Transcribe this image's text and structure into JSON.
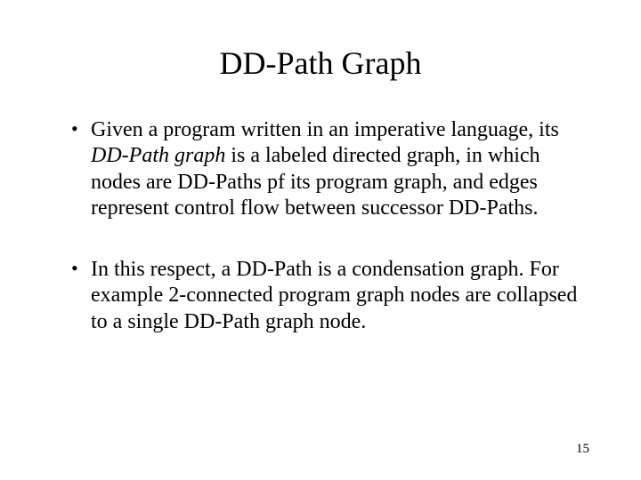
{
  "title": "DD-Path Graph",
  "bullets": [
    {
      "pre": "Given a program written in an imperative language, its ",
      "em": "DD-Path graph",
      "post": " is a labeled directed graph, in which nodes are DD-Paths pf its program graph, and edges represent control flow between successor DD-Paths."
    },
    {
      "pre": "In this respect, a DD-Path is a condensation graph. For example 2-connected program graph nodes are collapsed to a single DD-Path graph node.",
      "em": "",
      "post": ""
    }
  ],
  "page_number": "15",
  "colors": {
    "background": "#ffffff",
    "text": "#000000"
  },
  "typography": {
    "title_fontsize_pt": 28,
    "body_fontsize_pt": 18,
    "pagenum_fontsize_pt": 11,
    "font_family": "Times New Roman"
  }
}
